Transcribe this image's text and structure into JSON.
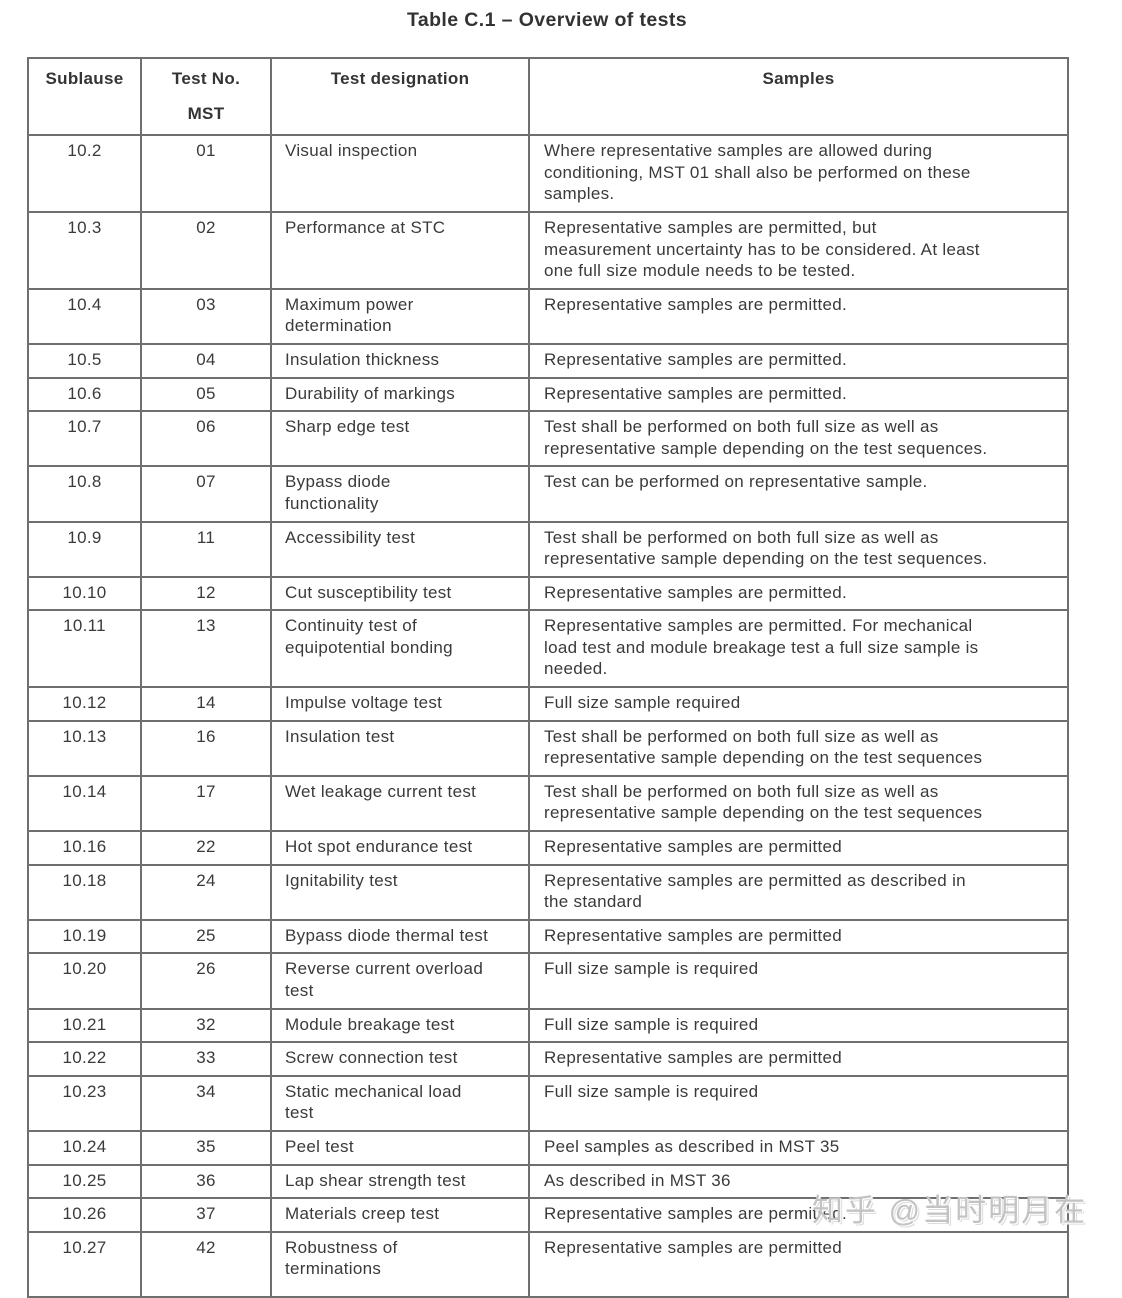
{
  "title": "Table C.1 – Overview of tests",
  "table": {
    "columns": {
      "subclause": {
        "label": "Sublause"
      },
      "test_no": {
        "label": "Test No.",
        "sublabel": "MST"
      },
      "designation": {
        "label": "Test designation"
      },
      "samples": {
        "label": "Samples"
      }
    },
    "rows": [
      {
        "subclause": "10.2",
        "test_no": "01",
        "designation": "Visual inspection",
        "samples": "Where representative samples are allowed during\nconditioning, MST 01 shall also be performed on these\nsamples."
      },
      {
        "subclause": "10.3",
        "test_no": "02",
        "designation": "Performance at STC",
        "samples": "Representative samples are permitted, but\nmeasurement uncertainty has to be considered. At least\none full size module needs to be tested."
      },
      {
        "subclause": "10.4",
        "test_no": "03",
        "designation": "Maximum power\ndetermination",
        "samples": "Representative samples are permitted."
      },
      {
        "subclause": "10.5",
        "test_no": "04",
        "designation": "Insulation thickness",
        "samples": "Representative samples are permitted."
      },
      {
        "subclause": "10.6",
        "test_no": "05",
        "designation": "Durability of markings",
        "samples": "Representative samples are permitted."
      },
      {
        "subclause": "10.7",
        "test_no": "06",
        "designation": "Sharp edge test",
        "samples": "Test shall be performed on both full size as well as\nrepresentative sample depending on the test sequences."
      },
      {
        "subclause": "10.8",
        "test_no": "07",
        "designation": "Bypass diode\nfunctionality",
        "samples": "Test can be performed on representative sample."
      },
      {
        "subclause": "10.9",
        "test_no": "11",
        "designation": "Accessibility test",
        "samples": "Test shall be performed on both full size as well as\nrepresentative sample depending on the test sequences."
      },
      {
        "subclause": "10.10",
        "test_no": "12",
        "designation": "Cut susceptibility test",
        "samples": "Representative samples are permitted."
      },
      {
        "subclause": "10.11",
        "test_no": "13",
        "designation": "Continuity test of\nequipotential bonding",
        "samples": "Representative samples are permitted. For mechanical\nload test and module breakage test a full size sample is\nneeded."
      },
      {
        "subclause": "10.12",
        "test_no": "14",
        "designation": "Impulse voltage test",
        "samples": "Full size sample required"
      },
      {
        "subclause": "10.13",
        "test_no": "16",
        "designation": "Insulation test",
        "samples": "Test shall be performed on both full size as well as\nrepresentative sample depending on the test sequences"
      },
      {
        "subclause": "10.14",
        "test_no": "17",
        "designation": "Wet leakage current test",
        "samples": "Test shall be performed on both full size as well as\nrepresentative sample depending on the test sequences"
      },
      {
        "subclause": "10.16",
        "test_no": "22",
        "designation": "Hot spot endurance test",
        "samples": "Representative samples are permitted"
      },
      {
        "subclause": "10.18",
        "test_no": "24",
        "designation": "Ignitability test",
        "samples": "Representative samples are permitted as described in\nthe standard"
      },
      {
        "subclause": "10.19",
        "test_no": "25",
        "designation": "Bypass diode thermal test",
        "samples": "Representative samples are permitted"
      },
      {
        "subclause": "10.20",
        "test_no": "26",
        "designation": "Reverse current overload\ntest",
        "samples": "Full size sample is required"
      },
      {
        "subclause": "10.21",
        "test_no": "32",
        "designation": "Module breakage test",
        "samples": "Full size sample is required"
      },
      {
        "subclause": "10.22",
        "test_no": "33",
        "designation": "Screw connection test",
        "samples": "Representative samples are permitted"
      },
      {
        "subclause": "10.23",
        "test_no": "34",
        "designation": "Static mechanical load\ntest",
        "samples": "Full size sample is required"
      },
      {
        "subclause": "10.24",
        "test_no": "35",
        "designation": "Peel test",
        "samples": "Peel samples as described in MST 35"
      },
      {
        "subclause": "10.25",
        "test_no": "36",
        "designation": "Lap shear strength test",
        "samples": "As described in MST 36"
      },
      {
        "subclause": "10.26",
        "test_no": "37",
        "designation": "Materials creep test",
        "samples": "Representative samples are permitted."
      },
      {
        "subclause": "10.27",
        "test_no": "42",
        "designation": "Robustness of\nterminations",
        "samples": "Representative samples are permitted"
      }
    ]
  },
  "watermark": {
    "text": "知乎 @当时明月在",
    "color": "#c3c3c3"
  },
  "colors": {
    "text": "#3a3a3a",
    "border": "#6f6f6f",
    "background": "#ffffff"
  }
}
